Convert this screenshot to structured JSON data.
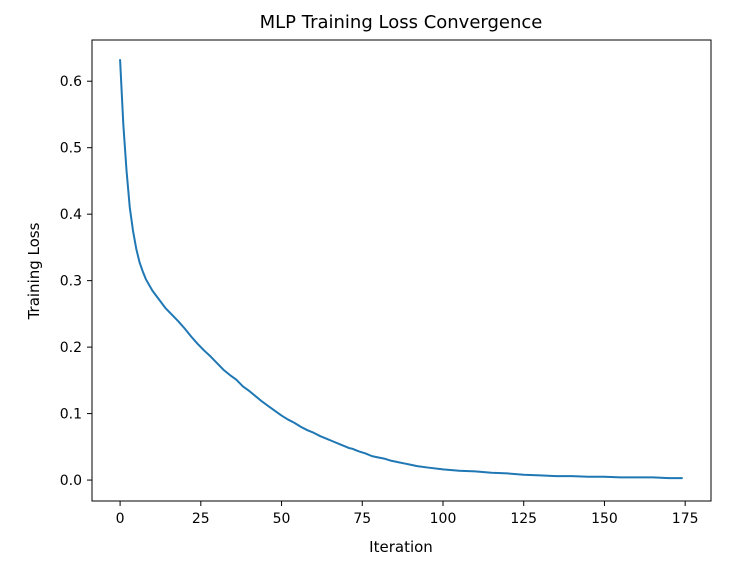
{
  "chart_data": {
    "type": "line",
    "title": "MLP Training Loss Convergence",
    "xlabel": "Iteration",
    "ylabel": "Training Loss",
    "xlim": [
      -8.7,
      183
    ],
    "ylim": [
      -0.0315,
      0.662
    ],
    "xticks": [
      0,
      25,
      50,
      75,
      100,
      125,
      150,
      175
    ],
    "yticks": [
      0.0,
      0.1,
      0.2,
      0.3,
      0.4,
      0.5,
      0.6
    ],
    "grid": false,
    "series": [
      {
        "color": "#1f77b4",
        "x": [
          0,
          1,
          2,
          3,
          4,
          5,
          6,
          7,
          8,
          10,
          12,
          14,
          16,
          18,
          20,
          22,
          24,
          26,
          28,
          30,
          32,
          34,
          36,
          38,
          40,
          42,
          44,
          46,
          48,
          50,
          52,
          54,
          56,
          58,
          60,
          62,
          64,
          66,
          68,
          70,
          71,
          72,
          73,
          74,
          76,
          78,
          80,
          82,
          84,
          86,
          88,
          90,
          92,
          95,
          100,
          105,
          110,
          115,
          120,
          125,
          130,
          135,
          140,
          145,
          150,
          155,
          160,
          165,
          170,
          174
        ],
        "y": [
          0.632,
          0.535,
          0.465,
          0.41,
          0.375,
          0.348,
          0.328,
          0.314,
          0.302,
          0.285,
          0.272,
          0.259,
          0.249,
          0.239,
          0.228,
          0.216,
          0.205,
          0.195,
          0.186,
          0.176,
          0.166,
          0.158,
          0.151,
          0.141,
          0.134,
          0.126,
          0.118,
          0.111,
          0.104,
          0.097,
          0.091,
          0.086,
          0.08,
          0.075,
          0.071,
          0.066,
          0.062,
          0.058,
          0.054,
          0.05,
          0.048,
          0.047,
          0.045,
          0.043,
          0.04,
          0.036,
          0.034,
          0.032,
          0.029,
          0.027,
          0.025,
          0.023,
          0.021,
          0.019,
          0.016,
          0.014,
          0.013,
          0.011,
          0.01,
          0.008,
          0.007,
          0.006,
          0.006,
          0.005,
          0.005,
          0.004,
          0.004,
          0.004,
          0.003,
          0.003
        ]
      }
    ]
  }
}
